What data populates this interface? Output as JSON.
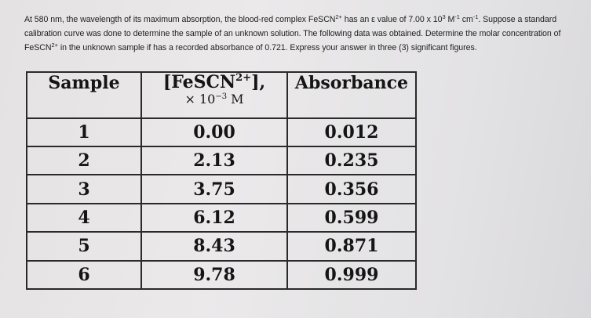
{
  "question": {
    "p1": "At 580 nm, the wavelength of its maximum absorption, the blood-red complex FeSCN",
    "p1_sup": "2+",
    "p2": " has an ε value of 7.00 x 10",
    "p2_sup": "3",
    "p3": " M",
    "p3_sup": "-1",
    "p4": " cm",
    "p4_sup": "-1",
    "p5": ". Suppose a standard calibration curve was done to determine the sample of an unknown solution. The following data was obtained. Determine the molar concentration of FeSCN",
    "p5_sup": "2+",
    "p6": " in the unknown sample if has a recorded absorbance of 0.721. Express your answer in three (3) significant figures."
  },
  "table": {
    "headers": {
      "sample": "Sample",
      "conc_main": "[FeSCN",
      "conc_sup": "2+",
      "conc_tail": "],",
      "conc_unit_main": "× 10",
      "conc_unit_sup": "−3",
      "conc_unit_tail": " M",
      "absorbance": "Absorbance"
    },
    "rows": [
      {
        "sample": "1",
        "concentration": "0.00",
        "absorbance": "0.012"
      },
      {
        "sample": "2",
        "concentration": "2.13",
        "absorbance": "0.235"
      },
      {
        "sample": "3",
        "concentration": "3.75",
        "absorbance": "0.356"
      },
      {
        "sample": "4",
        "concentration": "6.12",
        "absorbance": "0.599"
      },
      {
        "sample": "5",
        "concentration": "8.43",
        "absorbance": "0.871"
      },
      {
        "sample": "6",
        "concentration": "9.78",
        "absorbance": "0.999"
      }
    ]
  }
}
